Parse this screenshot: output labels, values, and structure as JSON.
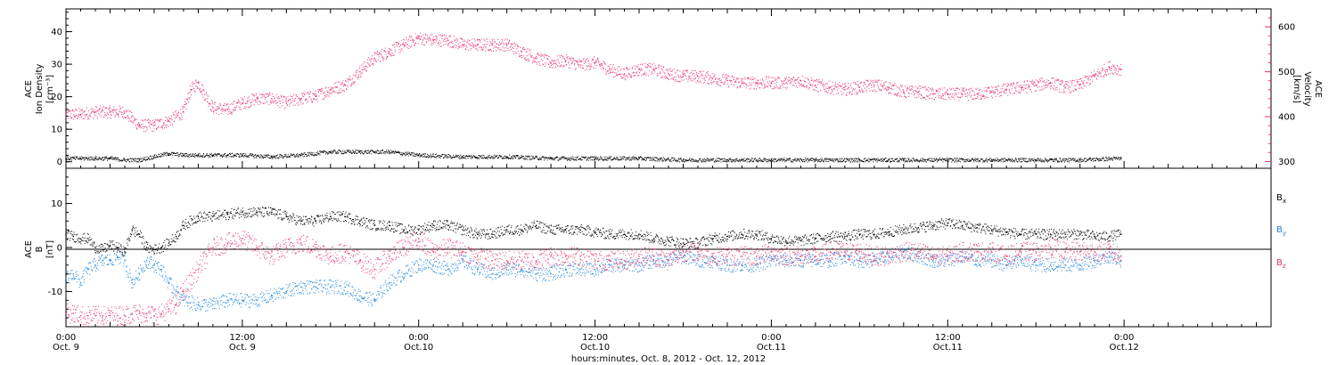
{
  "colors": {
    "black": "#000000",
    "pink": "#e8336a",
    "blue": "#1f85dd"
  },
  "chart_data": [
    {
      "panel": "top",
      "type": "scatter",
      "ylabel_left": [
        "ACE",
        "Ion Density",
        "[cm⁻³]"
      ],
      "ylabel_right": [
        "ACE",
        "Velocity",
        "[km/s]"
      ],
      "left_axis": {
        "ticks": [
          0,
          10,
          20,
          30,
          40
        ],
        "tick_labels": [
          "0",
          "10",
          "20",
          "30",
          "40"
        ],
        "range": [
          -2,
          47
        ]
      },
      "right_axis": {
        "ticks": [
          300,
          400,
          500,
          600
        ],
        "tick_labels": [
          "300",
          "400",
          "500",
          "600"
        ],
        "range": [
          285,
          640
        ]
      },
      "series": [
        {
          "name": "",
          "axis": "left",
          "color": "black",
          "x": [
            0,
            1,
            2,
            3,
            4,
            5,
            6,
            7,
            8,
            9,
            10,
            11,
            12,
            14,
            16,
            18,
            20,
            22,
            24,
            27,
            30,
            33,
            36,
            39,
            42,
            45,
            48,
            51,
            54,
            57,
            60,
            63,
            66,
            69,
            71.8
          ],
          "y": [
            1,
            1,
            1,
            1,
            0.5,
            0.5,
            1.5,
            2.5,
            2,
            2,
            2,
            2,
            2,
            1.5,
            2,
            3,
            3,
            3,
            2,
            1.5,
            1.5,
            1,
            1,
            1,
            0.5,
            0.5,
            0.5,
            0.5,
            0.5,
            0.5,
            0.5,
            0.5,
            0.5,
            0.5,
            1
          ]
        },
        {
          "name": "",
          "axis": "right",
          "color": "pink",
          "x": [
            0,
            1,
            2,
            3,
            4,
            5,
            6,
            7,
            8,
            8.5,
            9,
            10,
            11,
            12,
            13,
            14,
            15,
            16,
            17,
            18,
            19,
            20,
            21,
            22,
            23,
            24,
            25,
            26,
            27,
            28,
            29,
            30,
            31,
            32,
            33,
            34,
            35,
            36,
            37,
            38,
            39,
            40,
            41,
            42,
            43,
            44,
            45,
            46,
            47,
            48,
            49,
            50,
            51,
            52,
            53,
            54,
            55,
            56,
            57,
            58,
            59,
            60,
            61,
            62,
            63,
            64,
            65,
            66,
            67,
            68,
            69,
            70,
            71,
            71.8
          ],
          "y": [
            405,
            405,
            410,
            410,
            410,
            380,
            380,
            390,
            410,
            460,
            475,
            420,
            415,
            430,
            440,
            440,
            430,
            440,
            445,
            460,
            470,
            500,
            530,
            545,
            560,
            575,
            570,
            570,
            560,
            560,
            560,
            560,
            545,
            530,
            520,
            525,
            515,
            520,
            505,
            495,
            505,
            505,
            495,
            490,
            490,
            485,
            480,
            475,
            475,
            475,
            475,
            480,
            470,
            465,
            460,
            465,
            470,
            465,
            455,
            455,
            450,
            450,
            450,
            450,
            455,
            460,
            465,
            470,
            475,
            465,
            470,
            490,
            510,
            505
          ]
        }
      ]
    },
    {
      "panel": "bottom",
      "type": "scatter",
      "ylabel_left": [
        "ACE",
        "B",
        "[nT]"
      ],
      "left_axis": {
        "ticks": [
          -10,
          0,
          10
        ],
        "tick_labels": [
          "-10",
          "0",
          "10"
        ],
        "range": [
          -18,
          18
        ]
      },
      "series": [
        {
          "name": "B",
          "sub": "x",
          "color": "black",
          "x": [
            0,
            0.5,
            1,
            1.5,
            2,
            2.5,
            3,
            3.5,
            4,
            4.5,
            5,
            5.5,
            6,
            6.5,
            7,
            7.5,
            8,
            9,
            10,
            11,
            12,
            13,
            14,
            15,
            16,
            17,
            18,
            19,
            20,
            21,
            22,
            23,
            24,
            25,
            26,
            27,
            28,
            29,
            30,
            31,
            32,
            33,
            34,
            35,
            36,
            37,
            38,
            39,
            40,
            41,
            42,
            43,
            44,
            45,
            46,
            47,
            48,
            49,
            50,
            51,
            52,
            53,
            54,
            55,
            56,
            57,
            58,
            59,
            60,
            61,
            62,
            63,
            64,
            65,
            66,
            67,
            68,
            69,
            70,
            71,
            71.8
          ],
          "y": [
            3,
            2.5,
            2,
            2,
            0,
            -0.5,
            0.5,
            0,
            -1,
            4,
            3,
            0,
            -0.5,
            0,
            1,
            2.5,
            5,
            7,
            7,
            7.5,
            8,
            8,
            8,
            7,
            6,
            6,
            7,
            7,
            6,
            5,
            5,
            4,
            4,
            5,
            5,
            4,
            3,
            3,
            4,
            4,
            5,
            4,
            4,
            4,
            3.5,
            3,
            3,
            3,
            2,
            1.5,
            1,
            1,
            2,
            2.5,
            3,
            3,
            2,
            1.5,
            1.5,
            2,
            2.5,
            2.5,
            3,
            3,
            3.5,
            4,
            4.5,
            5,
            5.5,
            5,
            4.5,
            4,
            3.5,
            3,
            3,
            3,
            3,
            3,
            2.5,
            2.5,
            3
          ]
        },
        {
          "name": "B",
          "sub": "y",
          "color": "blue",
          "x": [
            0,
            0.5,
            1,
            1.5,
            2,
            2.5,
            3,
            3.5,
            4,
            4.5,
            5,
            5.5,
            6,
            6.5,
            7,
            7.5,
            8,
            9,
            10,
            11,
            12,
            13,
            14,
            15,
            16,
            17,
            18,
            19,
            20,
            21,
            22,
            23,
            24,
            25,
            26,
            27,
            28,
            29,
            30,
            31,
            32,
            33,
            34,
            35,
            36,
            37,
            38,
            39,
            40,
            41,
            42,
            43,
            44,
            45,
            46,
            47,
            48,
            49,
            50,
            51,
            52,
            53,
            54,
            55,
            56,
            57,
            58,
            59,
            60,
            61,
            62,
            63,
            64,
            65,
            66,
            67,
            68,
            69,
            70,
            71,
            71.8
          ],
          "y": [
            -7,
            -6,
            -8,
            -5,
            -4,
            -3,
            -3,
            -2,
            -3,
            -8,
            -6,
            -3,
            -4,
            -5,
            -8,
            -10,
            -12,
            -13,
            -13,
            -12,
            -12,
            -12,
            -11,
            -10,
            -9,
            -9,
            -9,
            -9,
            -11,
            -12,
            -8,
            -6,
            -4,
            -4,
            -5,
            -3,
            -5,
            -6,
            -5,
            -5,
            -6,
            -6,
            -5,
            -5,
            -5,
            -4,
            -4,
            -4,
            -3,
            -3,
            -2,
            -3,
            -3,
            -4,
            -4,
            -4,
            -3,
            -3,
            -3,
            -3,
            -3,
            -2,
            -3,
            -3,
            -2,
            -1,
            -2,
            -3,
            -3,
            -2,
            -3,
            -3,
            -4,
            -3,
            -4,
            -4,
            -4,
            -4,
            -3,
            -2,
            -3
          ]
        },
        {
          "name": "B",
          "sub": "z",
          "color": "pink",
          "x": [
            0,
            0.5,
            1,
            1.5,
            2,
            2.5,
            3,
            3.5,
            4,
            4.5,
            5,
            5.5,
            6,
            6.5,
            7,
            7.5,
            8,
            9,
            10,
            11,
            12,
            13,
            14,
            15,
            16,
            17,
            18,
            19,
            20,
            21,
            22,
            23,
            24,
            25,
            26,
            27,
            28,
            29,
            30,
            31,
            32,
            33,
            34,
            35,
            36,
            37,
            38,
            39,
            40,
            41,
            42,
            43,
            44,
            45,
            46,
            47,
            48,
            49,
            50,
            51,
            52,
            53,
            54,
            55,
            56,
            57,
            58,
            59,
            60,
            61,
            62,
            63,
            64,
            65,
            66,
            67,
            68,
            69,
            70,
            71,
            71.8
          ],
          "y": [
            -15,
            -15,
            -15.5,
            -15.5,
            -15.5,
            -15.5,
            -15.5,
            -15.5,
            -15.5,
            -15,
            -15,
            -15,
            -15.5,
            -15,
            -14,
            -13,
            -10,
            -5,
            0,
            1,
            2,
            0,
            -2,
            0,
            1,
            0,
            -2,
            -1,
            -3,
            -5,
            -2,
            0,
            2,
            -1,
            0,
            -1,
            -2,
            -3,
            -3,
            -3,
            -3,
            -2,
            -2,
            -2,
            -3,
            -3,
            -3,
            -2,
            -2,
            -3,
            -1,
            -1,
            -2,
            -2,
            -2,
            -2,
            -1,
            -2,
            -2,
            -2,
            -1,
            -1,
            -1,
            -2,
            -2,
            -1,
            -1,
            -2,
            -2,
            -1,
            -1,
            -1,
            -2,
            -1,
            -1,
            0,
            -1,
            -1,
            -1,
            -1,
            -2
          ]
        }
      ]
    }
  ],
  "xaxis": {
    "range_hours": [
      0,
      82
    ],
    "major_ticks": [
      0,
      12,
      24,
      36,
      48,
      60,
      72
    ],
    "major_labels": [
      [
        "0:00",
        "Oct. 9"
      ],
      [
        "12:00",
        "Oct. 9"
      ],
      [
        "0:00",
        "Oct.10"
      ],
      [
        "12:00",
        "Oct.10"
      ],
      [
        "0:00",
        "Oct.11"
      ],
      [
        "12:00",
        "Oct.11"
      ],
      [
        "0:00",
        "Oct.12"
      ]
    ],
    "title": "hours:minutes, Oct.  8, 2012 - Oct. 12, 2012"
  }
}
